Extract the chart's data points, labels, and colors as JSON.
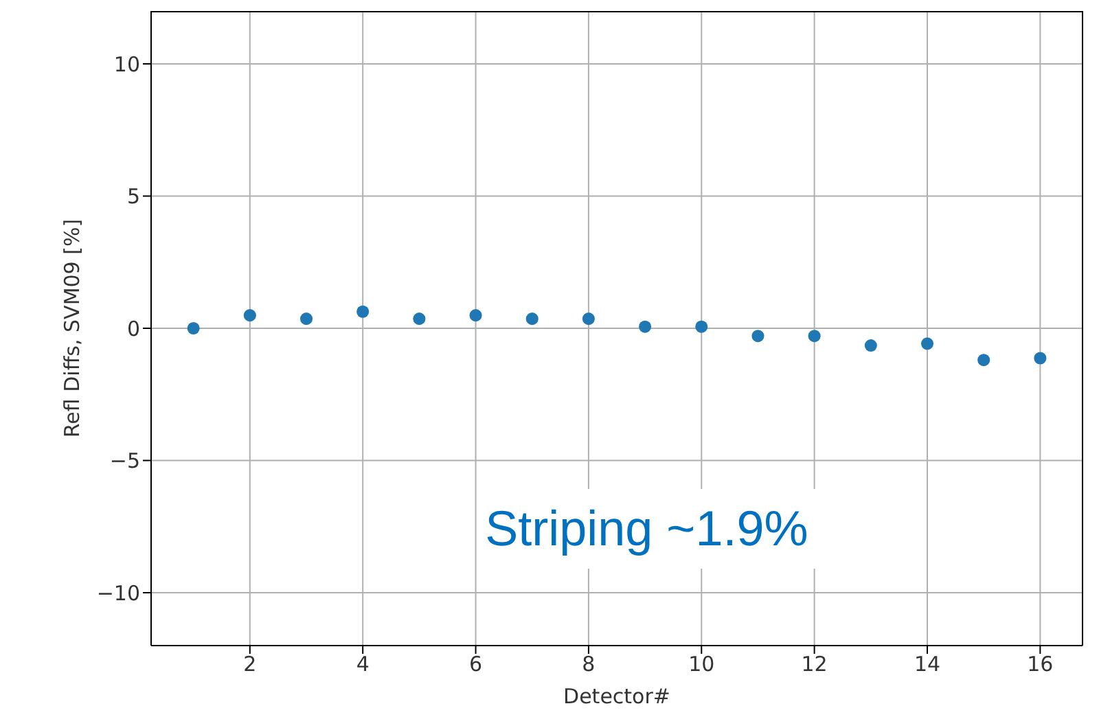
{
  "chart_data": {
    "type": "scatter",
    "xlabel": "Detector#",
    "ylabel": "Refl Diffs, SVM09 [%]",
    "x": [
      1,
      2,
      3,
      4,
      5,
      6,
      7,
      8,
      9,
      10,
      11,
      12,
      13,
      14,
      15,
      16
    ],
    "series": [
      {
        "color": "#1f77b4",
        "values": [
          0,
          0.49,
          0.36,
          0.63,
          0.36,
          0.49,
          0.36,
          0.36,
          0.06,
          0.06,
          -0.29,
          -0.29,
          -0.65,
          -0.58,
          -1.2,
          -1.13
        ]
      }
    ],
    "xlim": [
      0.25,
      16.75
    ],
    "xticks": [
      2,
      4,
      6,
      8,
      10,
      12,
      14,
      16
    ],
    "ylim": [
      -12,
      12
    ],
    "yticks": [
      {
        "value": -10,
        "label": "−10"
      },
      {
        "value": -5,
        "label": "−5"
      },
      0,
      5,
      10
    ],
    "grid": true,
    "marker": "circle",
    "annotations": [
      "Striping ~1.9%"
    ]
  }
}
